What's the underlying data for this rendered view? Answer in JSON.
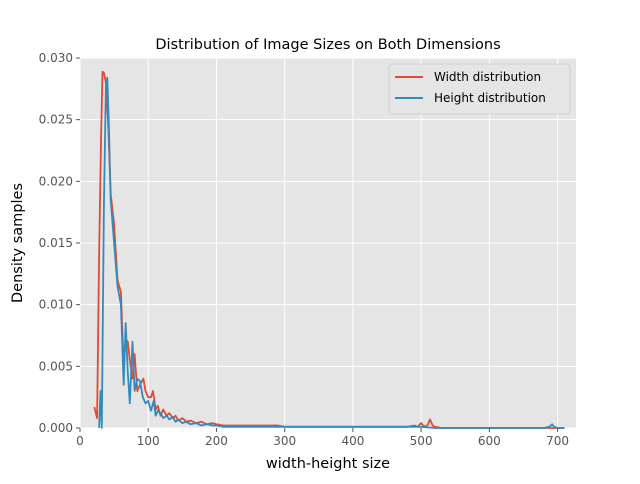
{
  "chart_data": {
    "type": "line",
    "title": "Distribution of Image Sizes on Both Dimensions",
    "xlabel": "width-height size",
    "ylabel": "Density samples",
    "xlim": [
      0,
      727
    ],
    "ylim": [
      0,
      0.03
    ],
    "xticks": [
      0,
      100,
      200,
      300,
      400,
      500,
      600,
      700
    ],
    "xtick_labels": [
      "0",
      "100",
      "200",
      "300",
      "400",
      "500",
      "600",
      "700"
    ],
    "yticks": [
      0,
      0.005,
      0.01,
      0.015,
      0.02,
      0.025,
      0.03
    ],
    "ytick_labels": [
      "0.000",
      "0.005",
      "0.010",
      "0.015",
      "0.020",
      "0.025",
      "0.030"
    ],
    "grid": true,
    "legend_position": "top-right",
    "series": [
      {
        "name": "Width distribution",
        "color": "#E24A33",
        "x": [
          21,
          25,
          28,
          31,
          33,
          35,
          38,
          41,
          45,
          50,
          55,
          60,
          64,
          67,
          70,
          73,
          77,
          80,
          84,
          88,
          93,
          96,
          100,
          104,
          107,
          111,
          114,
          118,
          122,
          127,
          131,
          136,
          140,
          144,
          150,
          156,
          162,
          170,
          178,
          186,
          194,
          200,
          210,
          220,
          230,
          240,
          250,
          260,
          270,
          280,
          290,
          300,
          320,
          340,
          360,
          380,
          400,
          420,
          440,
          460,
          480,
          490,
          495,
          500,
          503,
          507,
          510,
          513,
          517,
          520,
          530,
          550,
          600,
          650,
          700,
          710
        ],
        "y": [
          0.0017,
          0.0008,
          0.014,
          0.0237,
          0.0289,
          0.0288,
          0.028,
          0.025,
          0.019,
          0.0165,
          0.012,
          0.011,
          0.005,
          0.0072,
          0.007,
          0.0055,
          0.004,
          0.006,
          0.003,
          0.0035,
          0.004,
          0.003,
          0.0025,
          0.0025,
          0.003,
          0.0015,
          0.0018,
          0.001,
          0.0015,
          0.001,
          0.0012,
          0.0008,
          0.001,
          0.0006,
          0.0008,
          0.0005,
          0.0006,
          0.0004,
          0.0005,
          0.0003,
          0.0004,
          0.0003,
          0.0002,
          0.0002,
          0.0002,
          0.0002,
          0.0002,
          0.0002,
          0.0002,
          0.0002,
          0.0002,
          0.0001,
          0.0001,
          0.0001,
          0.0001,
          0.0001,
          0.0001,
          0.0001,
          0.0001,
          0.0001,
          0.0001,
          0.0002,
          0.0001,
          0.0004,
          0.0002,
          0.0001,
          0.0003,
          0.0007,
          0.0002,
          0.0001,
          0.0,
          0.0,
          0.0,
          0.0,
          0.0,
          0.0
        ]
      },
      {
        "name": "Height distribution",
        "color": "#348ABD",
        "x": [
          28,
          30,
          32,
          35,
          38,
          40,
          42,
          45,
          50,
          55,
          60,
          64,
          67,
          70,
          73,
          77,
          80,
          84,
          88,
          92,
          96,
          100,
          104,
          108,
          111,
          114,
          118,
          122,
          127,
          131,
          136,
          140,
          144,
          150,
          156,
          162,
          170,
          178,
          186,
          194,
          200,
          210,
          220,
          230,
          240,
          250,
          260,
          270,
          280,
          290,
          300,
          320,
          340,
          360,
          380,
          400,
          420,
          440,
          460,
          480,
          500,
          520,
          540,
          560,
          580,
          600,
          620,
          640,
          660,
          680,
          688,
          692,
          695,
          700,
          710
        ],
        "y": [
          0.0,
          0.003,
          0.0,
          0.018,
          0.0277,
          0.0284,
          0.025,
          0.0185,
          0.015,
          0.0115,
          0.01,
          0.0035,
          0.0085,
          0.0045,
          0.002,
          0.007,
          0.003,
          0.004,
          0.0038,
          0.0025,
          0.002,
          0.0022,
          0.0014,
          0.0022,
          0.001,
          0.0014,
          0.0012,
          0.0008,
          0.001,
          0.0007,
          0.0009,
          0.0005,
          0.0007,
          0.0004,
          0.0005,
          0.0003,
          0.0004,
          0.0002,
          0.0003,
          0.0002,
          0.0002,
          0.0001,
          0.0001,
          0.0001,
          0.0001,
          0.0001,
          0.0001,
          0.0001,
          0.0001,
          0.0001,
          0.0001,
          0.0001,
          0.0001,
          0.0001,
          0.0001,
          0.0001,
          0.0001,
          0.0001,
          0.0001,
          0.0001,
          0.0001,
          0.0,
          0.0,
          0.0,
          0.0,
          0.0,
          0.0,
          0.0,
          0.0,
          0.0,
          0.0001,
          0.0003,
          0.0001,
          0.0,
          0.0
        ]
      }
    ]
  }
}
